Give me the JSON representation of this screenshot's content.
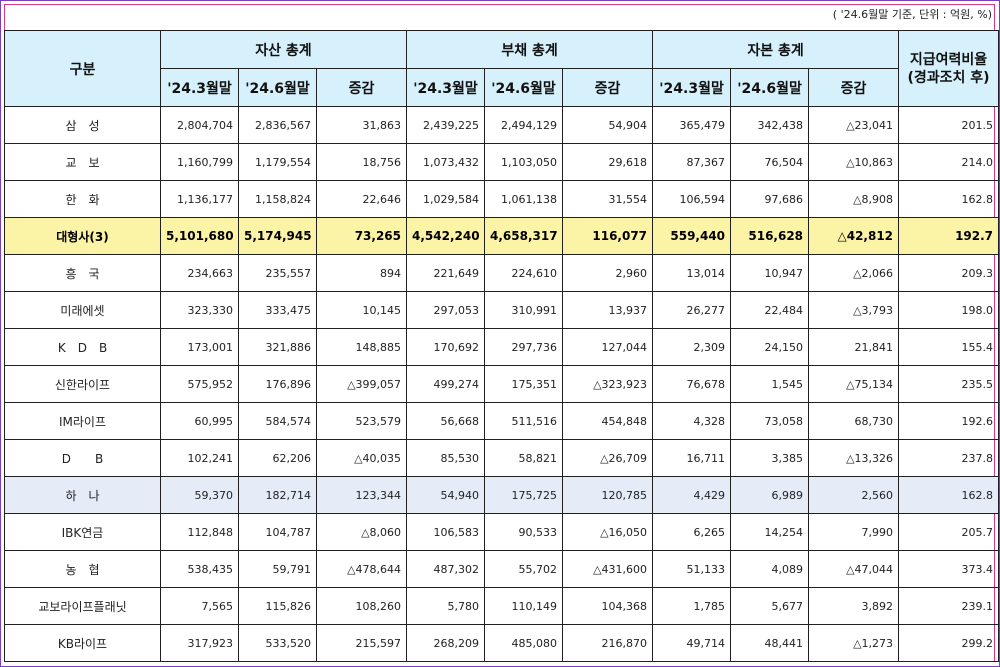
{
  "note": "( '24.6월말 기준, 단위 : 억원, %)",
  "headers": {
    "category": "구분",
    "assets": "자산 총계",
    "liabilities": "부채 총계",
    "equity": "자본 총계",
    "ratio_line1": "지급여력비율",
    "ratio_line2": "(경과조치 후)",
    "period1": "'24.3월말",
    "period2": "'24.6월말",
    "change": "증감"
  },
  "rows": [
    {
      "name": "삼　성",
      "a1": "2,804,704",
      "a2": "2,836,567",
      "ad": "31,863",
      "l1": "2,439,225",
      "l2": "2,494,129",
      "ld": "54,904",
      "e1": "365,479",
      "e2": "342,438",
      "ed": "△23,041",
      "r": "201.5",
      "style": ""
    },
    {
      "name": "교　보",
      "a1": "1,160,799",
      "a2": "1,179,554",
      "ad": "18,756",
      "l1": "1,073,432",
      "l2": "1,103,050",
      "ld": "29,618",
      "e1": "87,367",
      "e2": "76,504",
      "ed": "△10,863",
      "r": "214.0",
      "style": ""
    },
    {
      "name": "한　화",
      "a1": "1,136,177",
      "a2": "1,158,824",
      "ad": "22,646",
      "l1": "1,029,584",
      "l2": "1,061,138",
      "ld": "31,554",
      "e1": "106,594",
      "e2": "97,686",
      "ed": "△8,908",
      "r": "162.8",
      "style": ""
    },
    {
      "name": "대형사(3)",
      "a1": "5,101,680",
      "a2": "5,174,945",
      "ad": "73,265",
      "l1": "4,542,240",
      "l2": "4,658,317",
      "ld": "116,077",
      "e1": "559,440",
      "e2": "516,628",
      "ed": "△42,812",
      "r": "192.7",
      "style": "sum"
    },
    {
      "name": "흥　국",
      "a1": "234,663",
      "a2": "235,557",
      "ad": "894",
      "l1": "221,649",
      "l2": "224,610",
      "ld": "2,960",
      "e1": "13,014",
      "e2": "10,947",
      "ed": "△2,066",
      "r": "209.3",
      "style": ""
    },
    {
      "name": "미래에셋",
      "a1": "323,330",
      "a2": "333,475",
      "ad": "10,145",
      "l1": "297,053",
      "l2": "310,991",
      "ld": "13,937",
      "e1": "26,277",
      "e2": "22,484",
      "ed": "△3,793",
      "r": "198.0",
      "style": ""
    },
    {
      "name": "K　D　B",
      "a1": "173,001",
      "a2": "321,886",
      "ad": "148,885",
      "l1": "170,692",
      "l2": "297,736",
      "ld": "127,044",
      "e1": "2,309",
      "e2": "24,150",
      "ed": "21,841",
      "r": "155.4",
      "style": ""
    },
    {
      "name": "신한라이프",
      "a1": "575,952",
      "a2": "176,896",
      "ad": "△399,057",
      "l1": "499,274",
      "l2": "175,351",
      "ld": "△323,923",
      "e1": "76,678",
      "e2": "1,545",
      "ed": "△75,134",
      "r": "235.5",
      "style": ""
    },
    {
      "name": "IM라이프",
      "a1": "60,995",
      "a2": "584,574",
      "ad": "523,579",
      "l1": "56,668",
      "l2": "511,516",
      "ld": "454,848",
      "e1": "4,328",
      "e2": "73,058",
      "ed": "68,730",
      "r": "192.6",
      "style": ""
    },
    {
      "name": "D　　B",
      "a1": "102,241",
      "a2": "62,206",
      "ad": "△40,035",
      "l1": "85,530",
      "l2": "58,821",
      "ld": "△26,709",
      "e1": "16,711",
      "e2": "3,385",
      "ed": "△13,326",
      "r": "237.8",
      "style": ""
    },
    {
      "name": "하　나",
      "a1": "59,370",
      "a2": "182,714",
      "ad": "123,344",
      "l1": "54,940",
      "l2": "175,725",
      "ld": "120,785",
      "e1": "4,429",
      "e2": "6,989",
      "ed": "2,560",
      "r": "162.8",
      "style": "hl"
    },
    {
      "name": "IBK연금",
      "a1": "112,848",
      "a2": "104,787",
      "ad": "△8,060",
      "l1": "106,583",
      "l2": "90,533",
      "ld": "△16,050",
      "e1": "6,265",
      "e2": "14,254",
      "ed": "7,990",
      "r": "205.7",
      "style": ""
    },
    {
      "name": "농　협",
      "a1": "538,435",
      "a2": "59,791",
      "ad": "△478,644",
      "l1": "487,302",
      "l2": "55,702",
      "ld": "△431,600",
      "e1": "51,133",
      "e2": "4,089",
      "ed": "△47,044",
      "r": "373.4",
      "style": ""
    },
    {
      "name": "교보라이프플래닛",
      "a1": "7,565",
      "a2": "115,826",
      "ad": "108,260",
      "l1": "5,780",
      "l2": "110,149",
      "ld": "104,368",
      "e1": "1,785",
      "e2": "5,677",
      "ed": "3,892",
      "r": "239.1",
      "style": ""
    },
    {
      "name": "KB라이프",
      "a1": "317,923",
      "a2": "533,520",
      "ad": "215,597",
      "l1": "268,209",
      "l2": "485,080",
      "ld": "216,870",
      "e1": "49,714",
      "e2": "48,441",
      "ed": "△1,273",
      "r": "299.2",
      "style": ""
    }
  ]
}
